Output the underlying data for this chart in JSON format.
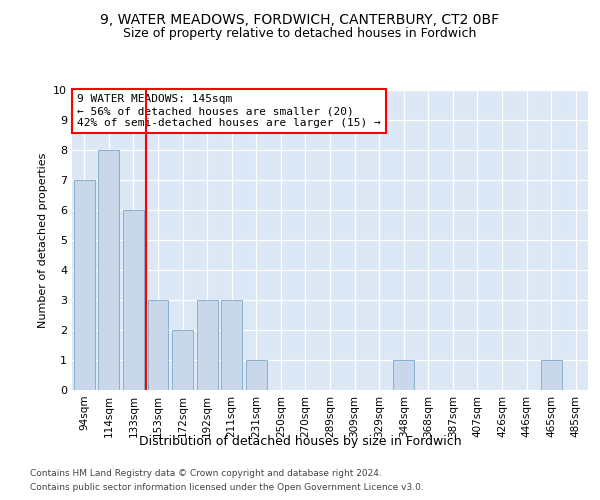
{
  "title1": "9, WATER MEADOWS, FORDWICH, CANTERBURY, CT2 0BF",
  "title2": "Size of property relative to detached houses in Fordwich",
  "xlabel": "Distribution of detached houses by size in Fordwich",
  "ylabel": "Number of detached properties",
  "categories": [
    "94sqm",
    "114sqm",
    "133sqm",
    "153sqm",
    "172sqm",
    "192sqm",
    "211sqm",
    "231sqm",
    "250sqm",
    "270sqm",
    "289sqm",
    "309sqm",
    "329sqm",
    "348sqm",
    "368sqm",
    "387sqm",
    "407sqm",
    "426sqm",
    "446sqm",
    "465sqm",
    "485sqm"
  ],
  "values": [
    7,
    8,
    6,
    3,
    2,
    3,
    3,
    1,
    0,
    0,
    0,
    0,
    0,
    1,
    0,
    0,
    0,
    0,
    0,
    1,
    0
  ],
  "bar_color": "#c8d8ea",
  "bar_edgecolor": "#8ab0cc",
  "redline_x": 2.5,
  "annotation_text": "9 WATER MEADOWS: 145sqm\n← 56% of detached houses are smaller (20)\n42% of semi-detached houses are larger (15) →",
  "annotation_box_color": "white",
  "annotation_box_edgecolor": "red",
  "redline_color": "red",
  "ylim": [
    0,
    10
  ],
  "yticks": [
    0,
    1,
    2,
    3,
    4,
    5,
    6,
    7,
    8,
    9,
    10
  ],
  "footnote1": "Contains HM Land Registry data © Crown copyright and database right 2024.",
  "footnote2": "Contains public sector information licensed under the Open Government Licence v3.0.",
  "bg_color": "#dce8f5",
  "title1_fontsize": 10,
  "title2_fontsize": 9
}
